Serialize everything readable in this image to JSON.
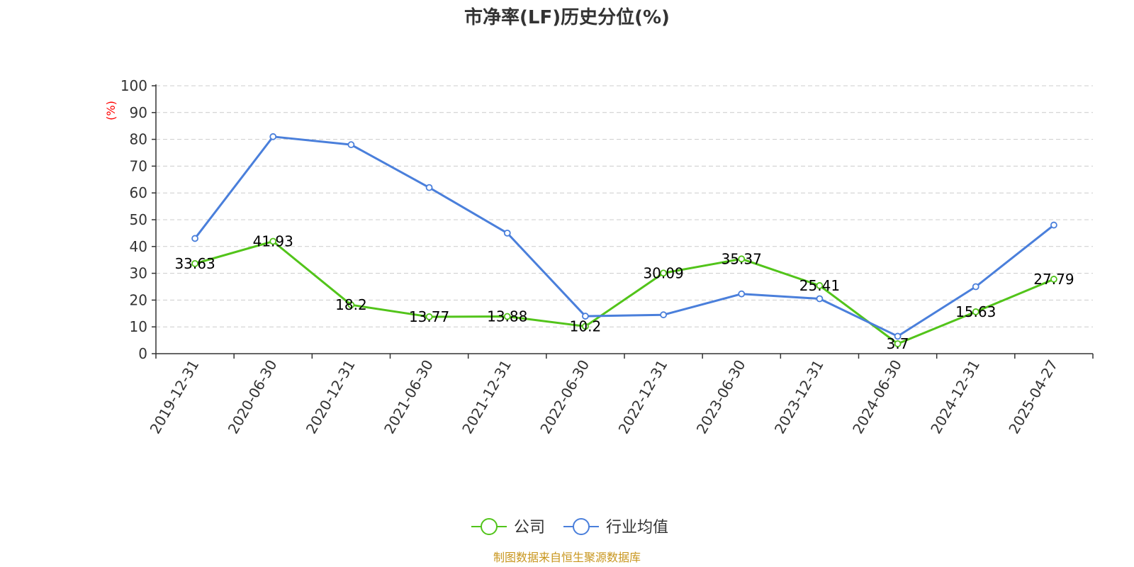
{
  "chart_data": {
    "type": "line",
    "title": "市净率(LF)历史分位(%)",
    "ylabel": "(%)",
    "ylim": [
      0,
      100
    ],
    "yticks": [
      0,
      10,
      20,
      30,
      40,
      50,
      60,
      70,
      80,
      90,
      100
    ],
    "categories": [
      "2019-12-31",
      "2020-06-30",
      "2020-12-31",
      "2021-06-30",
      "2021-12-31",
      "2022-06-30",
      "2022-12-31",
      "2023-06-30",
      "2023-12-31",
      "2024-06-30",
      "2024-12-31",
      "2025-04-27"
    ],
    "grid": true,
    "legend_position": "bottom-center",
    "series": [
      {
        "name": "公司",
        "color": "#52c41a",
        "values": [
          33.63,
          41.93,
          18.2,
          13.77,
          13.88,
          10.2,
          30.09,
          35.37,
          25.41,
          3.7,
          15.63,
          27.79
        ],
        "show_labels": true
      },
      {
        "name": "行业均值",
        "color": "#4a7fdb",
        "values": [
          43,
          81,
          78,
          62,
          45,
          14,
          14.5,
          22.3,
          20.5,
          6.5,
          25,
          48
        ],
        "show_labels": false
      }
    ],
    "source": "制图数据来自恒生聚源数据库",
    "source_color": "#c8961e",
    "ylabel_color": "#ff0000"
  }
}
